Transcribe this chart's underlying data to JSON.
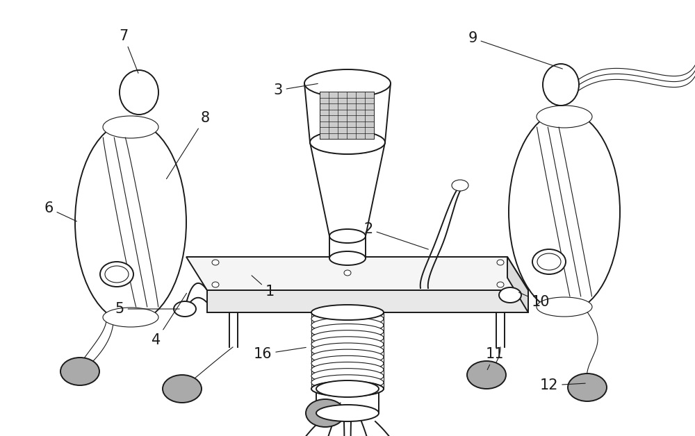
{
  "bg_color": "#ffffff",
  "line_color": "#1a1a1a",
  "gray_fill": "#999999",
  "label_color": "#111111",
  "figsize": [
    10.0,
    6.28
  ],
  "dpi": 100,
  "lw_main": 1.4,
  "lw_thin": 0.8,
  "label_fs": 15
}
